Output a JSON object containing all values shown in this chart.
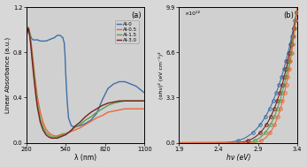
{
  "panel_a": {
    "title": "(a)",
    "xlabel": "λ (nm)",
    "ylabel": "Linear Absorbance (a.u.)",
    "xlim": [
      260,
      1100
    ],
    "ylim": [
      0,
      1.2
    ],
    "xticks": [
      260,
      540,
      820,
      1100
    ],
    "yticks": [
      0,
      0.4,
      0.8,
      1.2
    ],
    "legend_labels": [
      "Al-0",
      "Al-0.5",
      "Al-1.5",
      "Al-3.0"
    ],
    "colors": [
      "#3d6faa",
      "#e8693a",
      "#5a9e4a",
      "#7a2020"
    ],
    "curves": {
      "Al-0": {
        "x": [
          260,
          265,
          270,
          275,
          280,
          285,
          290,
          295,
          300,
          310,
          320,
          330,
          340,
          360,
          380,
          400,
          420,
          440,
          460,
          480,
          490,
          500,
          510,
          520,
          530,
          535,
          540,
          550,
          560,
          580,
          600,
          640,
          680,
          720,
          760,
          800,
          840,
          880,
          920,
          960,
          1000,
          1040,
          1080,
          1100
        ],
        "y": [
          0.92,
          0.97,
          1.0,
          1.02,
          1.0,
          0.97,
          0.95,
          0.93,
          0.92,
          0.91,
          0.91,
          0.91,
          0.91,
          0.9,
          0.9,
          0.9,
          0.91,
          0.92,
          0.93,
          0.95,
          0.95,
          0.95,
          0.94,
          0.93,
          0.88,
          0.78,
          0.62,
          0.38,
          0.22,
          0.15,
          0.14,
          0.15,
          0.17,
          0.2,
          0.26,
          0.38,
          0.48,
          0.52,
          0.54,
          0.54,
          0.52,
          0.5,
          0.46,
          0.44
        ]
      },
      "Al-0.5": {
        "x": [
          260,
          265,
          270,
          275,
          280,
          285,
          290,
          295,
          300,
          310,
          320,
          330,
          340,
          360,
          380,
          400,
          420,
          440,
          460,
          480,
          500,
          520,
          540,
          560,
          580,
          600,
          640,
          680,
          720,
          760,
          800,
          840,
          880,
          920,
          960,
          1000,
          1040,
          1080,
          1100
        ],
        "y": [
          0.92,
          0.97,
          1.0,
          1.02,
          1.0,
          0.97,
          0.93,
          0.88,
          0.83,
          0.72,
          0.6,
          0.5,
          0.4,
          0.27,
          0.18,
          0.12,
          0.09,
          0.07,
          0.06,
          0.06,
          0.07,
          0.08,
          0.08,
          0.09,
          0.1,
          0.11,
          0.13,
          0.16,
          0.19,
          0.22,
          0.24,
          0.27,
          0.28,
          0.29,
          0.3,
          0.3,
          0.3,
          0.3,
          0.3
        ]
      },
      "Al-1.5": {
        "x": [
          260,
          265,
          270,
          275,
          280,
          285,
          290,
          295,
          300,
          310,
          320,
          330,
          340,
          360,
          380,
          400,
          420,
          440,
          460,
          480,
          500,
          520,
          540,
          560,
          580,
          600,
          640,
          680,
          720,
          760,
          800,
          840,
          880,
          920,
          960,
          1000,
          1040,
          1080,
          1100
        ],
        "y": [
          0.92,
          0.97,
          1.0,
          1.02,
          0.99,
          0.96,
          0.91,
          0.85,
          0.79,
          0.67,
          0.55,
          0.44,
          0.34,
          0.21,
          0.14,
          0.09,
          0.07,
          0.05,
          0.05,
          0.05,
          0.06,
          0.07,
          0.08,
          0.09,
          0.11,
          0.13,
          0.16,
          0.2,
          0.23,
          0.27,
          0.3,
          0.33,
          0.35,
          0.36,
          0.37,
          0.37,
          0.37,
          0.37,
          0.37
        ]
      },
      "Al-3.0": {
        "x": [
          260,
          265,
          270,
          275,
          280,
          285,
          290,
          295,
          300,
          310,
          320,
          330,
          340,
          360,
          380,
          400,
          420,
          440,
          460,
          480,
          500,
          520,
          540,
          560,
          580,
          600,
          640,
          680,
          720,
          760,
          800,
          840,
          880,
          920,
          960,
          1000,
          1040,
          1080,
          1100
        ],
        "y": [
          0.92,
          0.96,
          0.99,
          1.01,
          0.98,
          0.94,
          0.89,
          0.83,
          0.76,
          0.63,
          0.51,
          0.4,
          0.31,
          0.18,
          0.11,
          0.07,
          0.05,
          0.04,
          0.04,
          0.04,
          0.05,
          0.06,
          0.07,
          0.09,
          0.11,
          0.14,
          0.18,
          0.23,
          0.27,
          0.3,
          0.33,
          0.35,
          0.36,
          0.37,
          0.37,
          0.37,
          0.37,
          0.37,
          0.37
        ]
      }
    }
  },
  "panel_b": {
    "title": "(b)",
    "xlabel": "hν (eV)",
    "ylabel": "(αhν)² (eV cm⁻¹)²",
    "xlim": [
      1.9,
      3.4
    ],
    "ylim": [
      0,
      9.9
    ],
    "xticks": [
      1.9,
      2.4,
      2.9,
      3.4
    ],
    "yticks": [
      0,
      3.3,
      6.6,
      9.9
    ],
    "scale_label": "×10¹²",
    "tauc_params": [
      {
        "label": "Al-0",
        "color": "#3d6faa",
        "Eg": 2.32,
        "power": 3.5,
        "tangent_hv": 2.52
      },
      {
        "label": "Al-3.0",
        "color": "#7a2020",
        "Eg": 2.5,
        "power": 3.5,
        "tangent_hv": 2.67
      },
      {
        "label": "Al-1.5",
        "color": "#5a9e4a",
        "Eg": 2.62,
        "power": 3.5,
        "tangent_hv": 2.78
      },
      {
        "label": "Al-0.5",
        "color": "#e8693a",
        "Eg": 2.74,
        "power": 3.5,
        "tangent_hv": 2.9
      }
    ]
  }
}
